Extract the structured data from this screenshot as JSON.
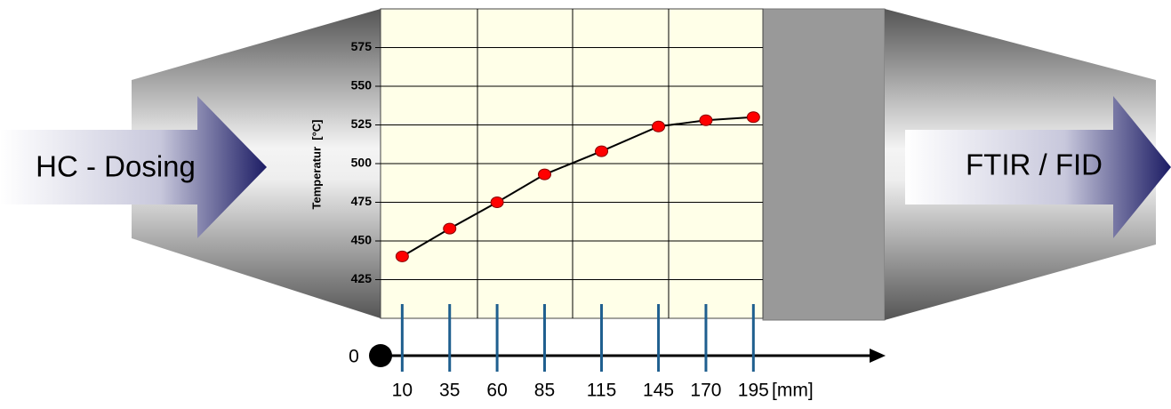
{
  "chart_data": {
    "type": "line",
    "y_label": "Temperatur  [°C]",
    "x_label": "[mm]",
    "x": [
      10,
      35,
      60,
      85,
      115,
      145,
      170,
      195
    ],
    "series": [
      {
        "color": "#ff0000",
        "values": [
          440,
          458,
          475,
          493,
          508,
          524,
          528,
          530
        ]
      }
    ],
    "xlim": [
      0,
      200
    ],
    "ylim": [
      400,
      600
    ],
    "xticks": [
      0,
      10,
      35,
      60,
      85,
      115,
      145,
      170,
      195
    ],
    "yticks": [
      425,
      450,
      475,
      500,
      525,
      550,
      575
    ],
    "grid": true
  },
  "labels": {
    "inlet": "HC - Dosing",
    "outlet": "FTIR / FID"
  }
}
